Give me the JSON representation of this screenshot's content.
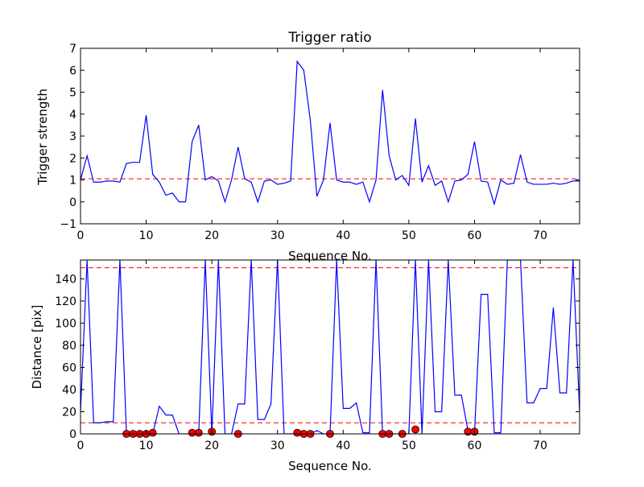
{
  "figure": {
    "background": "#ffffff"
  },
  "chart_data": [
    {
      "type": "line",
      "title": "Trigger ratio",
      "xlabel": "Sequence No.",
      "ylabel": "Trigger strength",
      "xlim": [
        0,
        76
      ],
      "ylim": [
        -1,
        7
      ],
      "xticks": [
        0,
        10,
        20,
        30,
        40,
        50,
        60,
        70
      ],
      "yticks": [
        -1,
        0,
        1,
        2,
        3,
        4,
        5,
        6,
        7
      ],
      "grid": false,
      "series": [
        {
          "color": "#0000ff",
          "x": [
            0,
            1,
            2,
            3,
            4,
            5,
            6,
            7,
            8,
            9,
            10,
            11,
            12,
            13,
            14,
            15,
            16,
            17,
            18,
            19,
            20,
            21,
            22,
            23,
            24,
            25,
            26,
            27,
            28,
            29,
            30,
            31,
            32,
            33,
            34,
            35,
            36,
            37,
            38,
            39,
            40,
            41,
            42,
            43,
            44,
            45,
            46,
            47,
            48,
            49,
            50,
            51,
            52,
            53,
            54,
            55,
            56,
            57,
            58,
            59,
            60,
            61,
            62,
            63,
            64,
            65,
            66,
            67,
            68,
            69,
            70,
            71,
            72,
            73,
            74,
            75,
            76
          ],
          "y": [
            1.0,
            2.1,
            0.9,
            0.9,
            0.95,
            0.95,
            0.9,
            1.75,
            1.8,
            1.8,
            3.95,
            1.25,
            0.9,
            0.3,
            0.4,
            0.0,
            0.0,
            2.75,
            3.5,
            1.0,
            1.15,
            0.95,
            0.0,
            1.0,
            2.5,
            1.05,
            0.9,
            0.0,
            0.95,
            1.0,
            0.8,
            0.85,
            0.95,
            6.4,
            6.0,
            3.7,
            0.25,
            1.0,
            3.6,
            1.0,
            0.9,
            0.9,
            0.8,
            0.9,
            0.0,
            1.0,
            5.1,
            2.1,
            1.0,
            1.2,
            0.75,
            3.8,
            0.9,
            1.65,
            0.75,
            0.95,
            0.0,
            0.95,
            1.0,
            1.25,
            2.75,
            0.95,
            0.9,
            -0.1,
            1.0,
            0.8,
            0.85,
            2.15,
            0.9,
            0.8,
            0.8,
            0.8,
            0.85,
            0.8,
            0.85,
            0.95,
            0.95
          ]
        }
      ],
      "reference_lines": [
        {
          "axis": "y",
          "value": 1.05,
          "color": "#ff0000",
          "style": "dashed"
        }
      ]
    },
    {
      "type": "line",
      "title": "",
      "xlabel": "Sequence No.",
      "ylabel": "Distance [pix]",
      "xlim": [
        0,
        76
      ],
      "ylim": [
        0,
        157
      ],
      "xticks": [
        0,
        10,
        20,
        30,
        40,
        50,
        60,
        70
      ],
      "yticks": [
        0,
        20,
        40,
        60,
        80,
        100,
        120,
        140
      ],
      "grid": false,
      "series": [
        {
          "color": "#0000ff",
          "x": [
            0,
            1,
            2,
            3,
            4,
            5,
            6,
            7,
            8,
            9,
            10,
            11,
            12,
            13,
            14,
            15,
            16,
            17,
            18,
            19,
            20,
            21,
            22,
            23,
            24,
            25,
            26,
            27,
            28,
            29,
            30,
            31,
            32,
            33,
            34,
            35,
            36,
            37,
            38,
            39,
            40,
            41,
            42,
            43,
            44,
            45,
            46,
            47,
            48,
            49,
            50,
            51,
            52,
            53,
            54,
            55,
            56,
            57,
            58,
            59,
            60,
            61,
            62,
            63,
            64,
            65,
            66,
            67,
            68,
            69,
            70,
            71,
            72,
            73,
            74,
            75,
            76
          ],
          "y": [
            20,
            157,
            10,
            10,
            11,
            11,
            157,
            0,
            0,
            0,
            0,
            0,
            25,
            17,
            17,
            0,
            0,
            0,
            0,
            157,
            0,
            157,
            0,
            0,
            27,
            27,
            157,
            13,
            13,
            27,
            157,
            0,
            0,
            0,
            0,
            0,
            3,
            0,
            0,
            157,
            23,
            23,
            28,
            1,
            1,
            157,
            0,
            0,
            0,
            0,
            0,
            157,
            0,
            157,
            20,
            20,
            157,
            35,
            35,
            3,
            1,
            126,
            126,
            1,
            1,
            157,
            157,
            157,
            28,
            28,
            41,
            41,
            114,
            37,
            37,
            157,
            20
          ]
        },
        {
          "type": "scatter",
          "color": "#ff0000",
          "x": [
            7,
            8,
            9,
            10,
            11,
            17,
            18,
            20,
            24,
            33,
            34,
            35,
            38,
            46,
            47,
            49,
            51,
            59,
            60
          ],
          "y": [
            0,
            0,
            0,
            0,
            1,
            1,
            1,
            2,
            0,
            1,
            0,
            0,
            0,
            0,
            0,
            0,
            4,
            2,
            2
          ]
        }
      ],
      "reference_lines": [
        {
          "axis": "y",
          "value": 150,
          "color": "#ff0000",
          "style": "dashed"
        },
        {
          "axis": "y",
          "value": 10,
          "color": "#ff0000",
          "style": "dashed"
        }
      ]
    }
  ]
}
